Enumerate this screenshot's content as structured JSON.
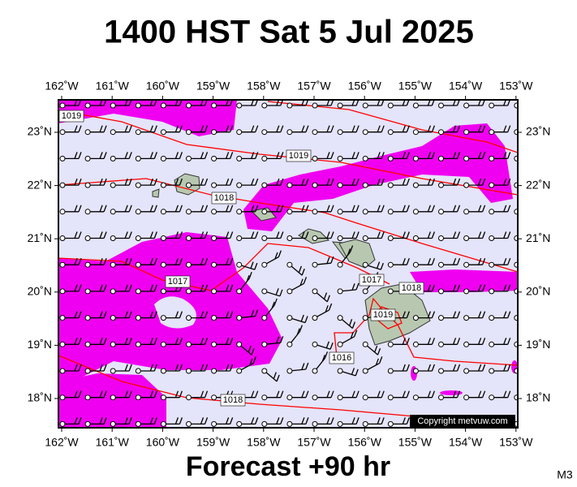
{
  "title": "1400 HST Sat 5 Jul 2025",
  "footer": "Forecast +90 hr",
  "model": "M3",
  "copyright": "Copyright metvuw.com",
  "longitudes": [
    "162˚W",
    "161˚W",
    "160˚W",
    "159˚W",
    "158˚W",
    "157˚W",
    "156˚W",
    "155˚W",
    "154˚W",
    "153˚W"
  ],
  "latitudes": [
    "23˚N",
    "22˚N",
    "21˚N",
    "20˚N",
    "19˚N",
    "18˚N"
  ],
  "isobar_labels": [
    "1019",
    "1019",
    "1018",
    "1017",
    "1017",
    "1018",
    "1019",
    "1016",
    "1018"
  ]
}
